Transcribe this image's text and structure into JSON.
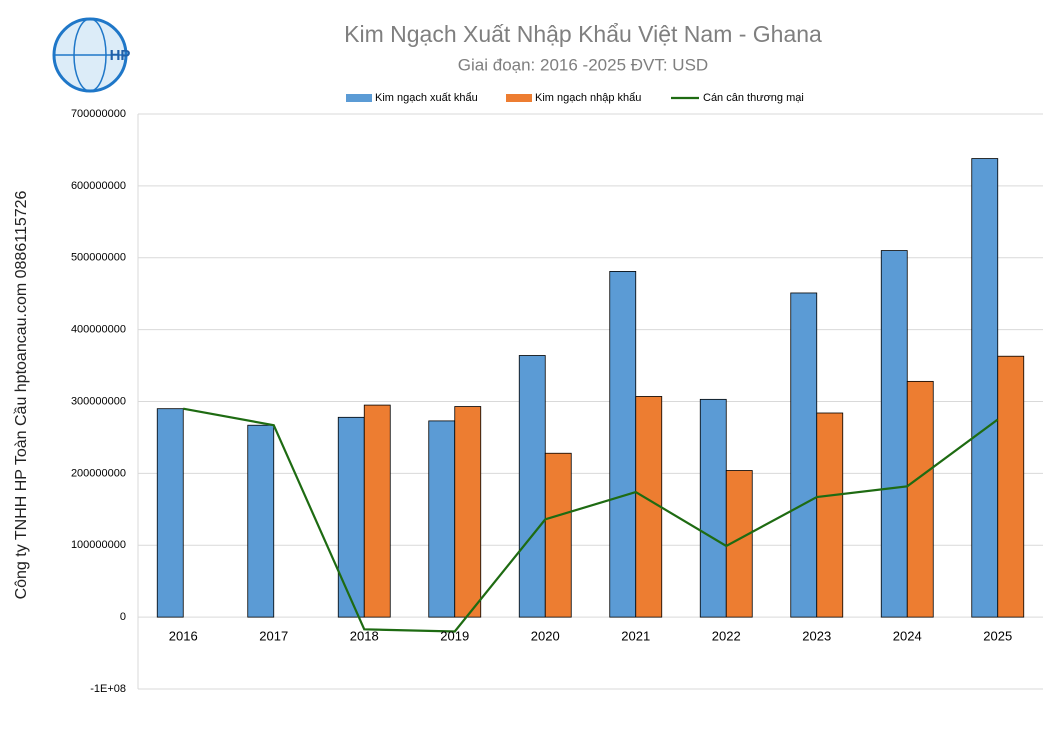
{
  "chart_data": {
    "type": "bar",
    "title": "Kim Ngạch Xuất Nhập Khẩu Việt Nam - Ghana",
    "subtitle": "Giai đoạn: 2016 -2025  ĐVT: USD",
    "watermark": "Công ty TNHH HP Toàn Cầu hptoancau.com 0886115726",
    "logo_text": "HP",
    "categories": [
      "2016",
      "2017",
      "2018",
      "2019",
      "2020",
      "2021",
      "2022",
      "2023",
      "2024",
      "2025"
    ],
    "series": [
      {
        "name": "Kim ngạch xuất khẩu",
        "type": "bar",
        "color": "#5b9bd5",
        "values": [
          290000000,
          267000000,
          278000000,
          273000000,
          364000000,
          481000000,
          303000000,
          451000000,
          510000000,
          638000000
        ]
      },
      {
        "name": "Kim ngạch nhập khẩu",
        "type": "bar",
        "color": "#ed7d31",
        "values": [
          0,
          0,
          295000000,
          293000000,
          228000000,
          307000000,
          204000000,
          284000000,
          328000000,
          363000000
        ]
      },
      {
        "name": "Cán cân thương mại",
        "type": "line",
        "color": "#1e6b12",
        "values": [
          290000000,
          267000000,
          -17000000,
          -20000000,
          136000000,
          174000000,
          99000000,
          167000000,
          182000000,
          275000000
        ]
      }
    ],
    "ylim": [
      -100000000,
      700000000
    ],
    "yticks": [
      {
        "value": -100000000,
        "label": "-1E+08"
      },
      0,
      100000000,
      200000000,
      300000000,
      400000000,
      500000000,
      600000000,
      700000000
    ],
    "grid": true,
    "legend": "top"
  }
}
